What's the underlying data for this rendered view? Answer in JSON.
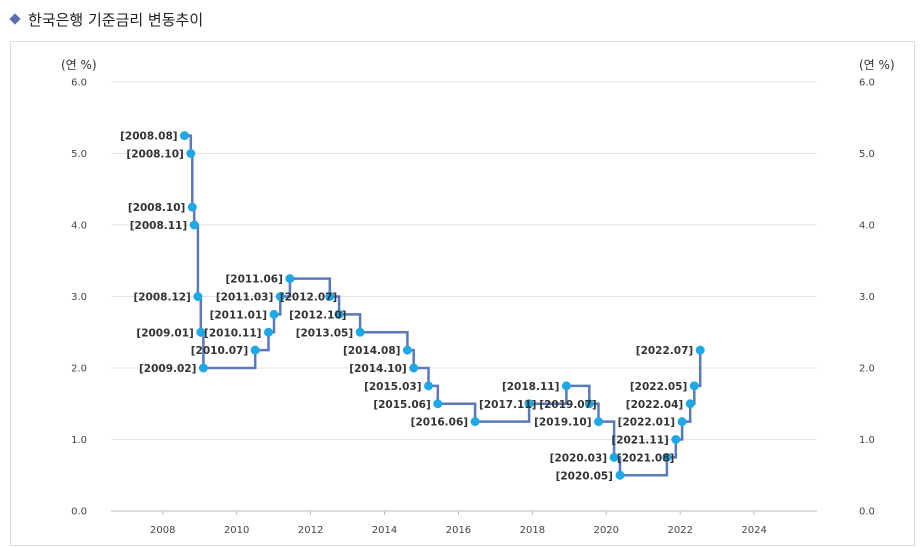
{
  "page": {
    "title": "한국은행 기준금리 변동추이"
  },
  "chart_data": {
    "type": "line",
    "title": "한국은행 기준금리 변동추이",
    "y_unit_left": "(연 %)",
    "y_unit_right": "(연 %)",
    "xlim": [
      2006.6,
      2025.7
    ],
    "ylim": [
      0,
      6
    ],
    "x_ticks": [
      2008,
      2010,
      2012,
      2014,
      2016,
      2018,
      2020,
      2022,
      2024
    ],
    "y_ticks": [
      "0.0",
      "1.0",
      "2.0",
      "3.0",
      "4.0",
      "5.0",
      "6.0"
    ],
    "grid": true,
    "line_color": "#5b78bb",
    "marker_color": "#1fa8e6",
    "points": [
      {
        "x": 2008.59,
        "y": 5.25,
        "label": "[2008.08]"
      },
      {
        "x": 2008.76,
        "y": 5.0,
        "label": "[2008.10]"
      },
      {
        "x": 2008.8,
        "y": 4.25,
        "label": "[2008.10]"
      },
      {
        "x": 2008.85,
        "y": 4.0,
        "label": "[2008.11]"
      },
      {
        "x": 2008.95,
        "y": 3.0,
        "label": "[2008.12]"
      },
      {
        "x": 2009.03,
        "y": 2.5,
        "label": "[2009.01]"
      },
      {
        "x": 2009.1,
        "y": 2.0,
        "label": "[2009.02]"
      },
      {
        "x": 2010.5,
        "y": 2.25,
        "label": "[2010.07]"
      },
      {
        "x": 2010.86,
        "y": 2.5,
        "label": "[2010.11]"
      },
      {
        "x": 2011.01,
        "y": 2.75,
        "label": "[2011.01]"
      },
      {
        "x": 2011.18,
        "y": 3.0,
        "label": "[2011.03]"
      },
      {
        "x": 2011.44,
        "y": 3.25,
        "label": "[2011.06]"
      },
      {
        "x": 2012.52,
        "y": 3.0,
        "label": "[2012.07]"
      },
      {
        "x": 2012.77,
        "y": 2.75,
        "label": "[2012.10]"
      },
      {
        "x": 2013.34,
        "y": 2.5,
        "label": "[2013.05]"
      },
      {
        "x": 2014.62,
        "y": 2.25,
        "label": "[2014.08]"
      },
      {
        "x": 2014.79,
        "y": 2.0,
        "label": "[2014.10]"
      },
      {
        "x": 2015.19,
        "y": 1.75,
        "label": "[2015.03]"
      },
      {
        "x": 2015.44,
        "y": 1.5,
        "label": "[2015.06]"
      },
      {
        "x": 2016.45,
        "y": 1.25,
        "label": "[2016.06]"
      },
      {
        "x": 2017.91,
        "y": 1.5,
        "label": "[2017.11]"
      },
      {
        "x": 2018.92,
        "y": 1.75,
        "label": "[2018.11]"
      },
      {
        "x": 2019.54,
        "y": 1.5,
        "label": "[2019.07]"
      },
      {
        "x": 2019.79,
        "y": 1.25,
        "label": "[2019.10]"
      },
      {
        "x": 2020.21,
        "y": 0.75,
        "label": "[2020.03]"
      },
      {
        "x": 2020.37,
        "y": 0.5,
        "label": "[2020.05]"
      },
      {
        "x": 2021.64,
        "y": 0.75,
        "label": "[2021.08]"
      },
      {
        "x": 2021.88,
        "y": 1.0,
        "label": "[2021.11]"
      },
      {
        "x": 2022.05,
        "y": 1.25,
        "label": "[2022.01]"
      },
      {
        "x": 2022.27,
        "y": 1.5,
        "label": "[2022.04]"
      },
      {
        "x": 2022.38,
        "y": 1.75,
        "label": "[2022.05]"
      },
      {
        "x": 2022.54,
        "y": 2.25,
        "label": "[2022.07]"
      }
    ]
  }
}
